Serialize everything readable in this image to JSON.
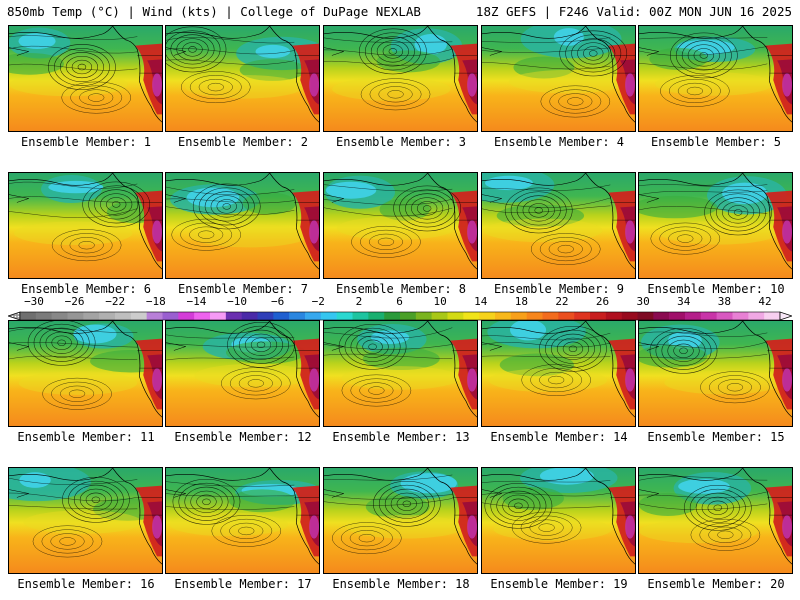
{
  "header": {
    "left": "850mb Temp (°C) | Wind (kts) | College of DuPage NEXLAB",
    "right": "18Z GEFS | F246 Valid: 00Z MON JUN 16 2025"
  },
  "panels": [
    {
      "label": "Ensemble Member: 1"
    },
    {
      "label": "Ensemble Member: 2"
    },
    {
      "label": "Ensemble Member: 3"
    },
    {
      "label": "Ensemble Member: 4"
    },
    {
      "label": "Ensemble Member: 5"
    },
    {
      "label": "Ensemble Member: 6"
    },
    {
      "label": "Ensemble Member: 7"
    },
    {
      "label": "Ensemble Member: 8"
    },
    {
      "label": "Ensemble Member: 9"
    },
    {
      "label": "Ensemble Member: 10"
    },
    {
      "label": "Ensemble Member: 11"
    },
    {
      "label": "Ensemble Member: 12"
    },
    {
      "label": "Ensemble Member: 13"
    },
    {
      "label": "Ensemble Member: 14"
    },
    {
      "label": "Ensemble Member: 15"
    },
    {
      "label": "Ensemble Member: 16"
    },
    {
      "label": "Ensemble Member: 17"
    },
    {
      "label": "Ensemble Member: 18"
    },
    {
      "label": "Ensemble Member: 19"
    },
    {
      "label": "Ensemble Member: 20"
    }
  ],
  "colorbar": {
    "ticks": [
      "-30",
      "-26",
      "-22",
      "-18",
      "-14",
      "-10",
      "-6",
      "-2",
      "2",
      "6",
      "10",
      "14",
      "18",
      "22",
      "26",
      "30",
      "34",
      "38",
      "42"
    ],
    "colors": [
      "#6f6f6f",
      "#7b7b7b",
      "#888888",
      "#959595",
      "#a3a3a3",
      "#b0b0b0",
      "#bebebe",
      "#cccccc",
      "#b87fd8",
      "#9a5fd0",
      "#d33cd8",
      "#ee63ee",
      "#f59af5",
      "#6a2fb0",
      "#4a2aa8",
      "#2f3fb8",
      "#1f5fd0",
      "#2a86e0",
      "#37a8ee",
      "#35c6f0",
      "#2ad8d0",
      "#1ec4a0",
      "#19b070",
      "#2a9a3a",
      "#4aa028",
      "#7ab420",
      "#a8c818",
      "#d2da14",
      "#f0e41a",
      "#f6d21a",
      "#f8b81a",
      "#f8a01a",
      "#f7861c",
      "#f26c1e",
      "#ea4f1f",
      "#de3420",
      "#c81e20",
      "#b01020",
      "#980a1e",
      "#7e0a24",
      "#8a0a50",
      "#a0106a",
      "#b4208a",
      "#c834a8",
      "#d858c0",
      "#e880d4",
      "#f0a8e4",
      "#f8d0f0"
    ]
  }
}
